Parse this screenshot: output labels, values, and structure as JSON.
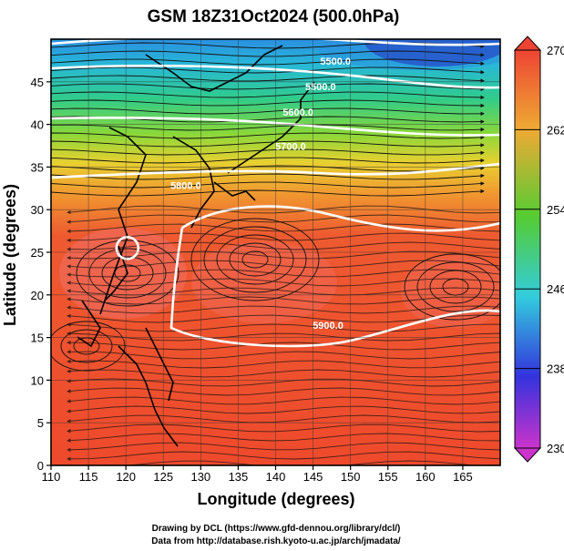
{
  "chart_data": {
    "type": "heatmap",
    "title": "GSM 18Z31Oct2024 (500.0hPa)",
    "xlabel": "Longitude (degrees)",
    "ylabel": "Latitude  (degrees)",
    "xlim": [
      110,
      170
    ],
    "ylim": [
      0,
      50
    ],
    "x_ticks": [
      110,
      115,
      120,
      125,
      130,
      135,
      140,
      145,
      150,
      155,
      160,
      165
    ],
    "y_ticks": [
      0,
      5,
      10,
      15,
      20,
      25,
      30,
      35,
      40,
      45
    ],
    "colorbar": {
      "range": [
        230,
        270
      ],
      "ticks": [
        230,
        238,
        246,
        254,
        262,
        270
      ],
      "colors": [
        "#cc33cc",
        "#3333ee",
        "#33cccc",
        "#55cc33",
        "#eeaa33",
        "#ee4433"
      ]
    },
    "contour_labels": [
      {
        "text": "5900.0",
        "lon": 147,
        "lat": 16
      },
      {
        "text": "5800.0",
        "lon": 128,
        "lat": 32.4
      },
      {
        "text": "5700.0",
        "lon": 142,
        "lat": 37
      },
      {
        "text": "5600.0",
        "lon": 143,
        "lat": 41
      },
      {
        "text": "5500.0",
        "lon": 146,
        "lat": 44
      },
      {
        "text": "5500.0",
        "lon": 148,
        "lat": 47
      }
    ],
    "features": {
      "typhoon_center": {
        "lon": 120.2,
        "lat": 25.5
      }
    },
    "grid": true
  },
  "credits": {
    "line1": "Drawing by DCL (https://www.gfd-dennou.org/library/dcl/)",
    "line2": "Data from http://database.rish.kyoto-u.ac.jp/arch/jmadata/"
  }
}
